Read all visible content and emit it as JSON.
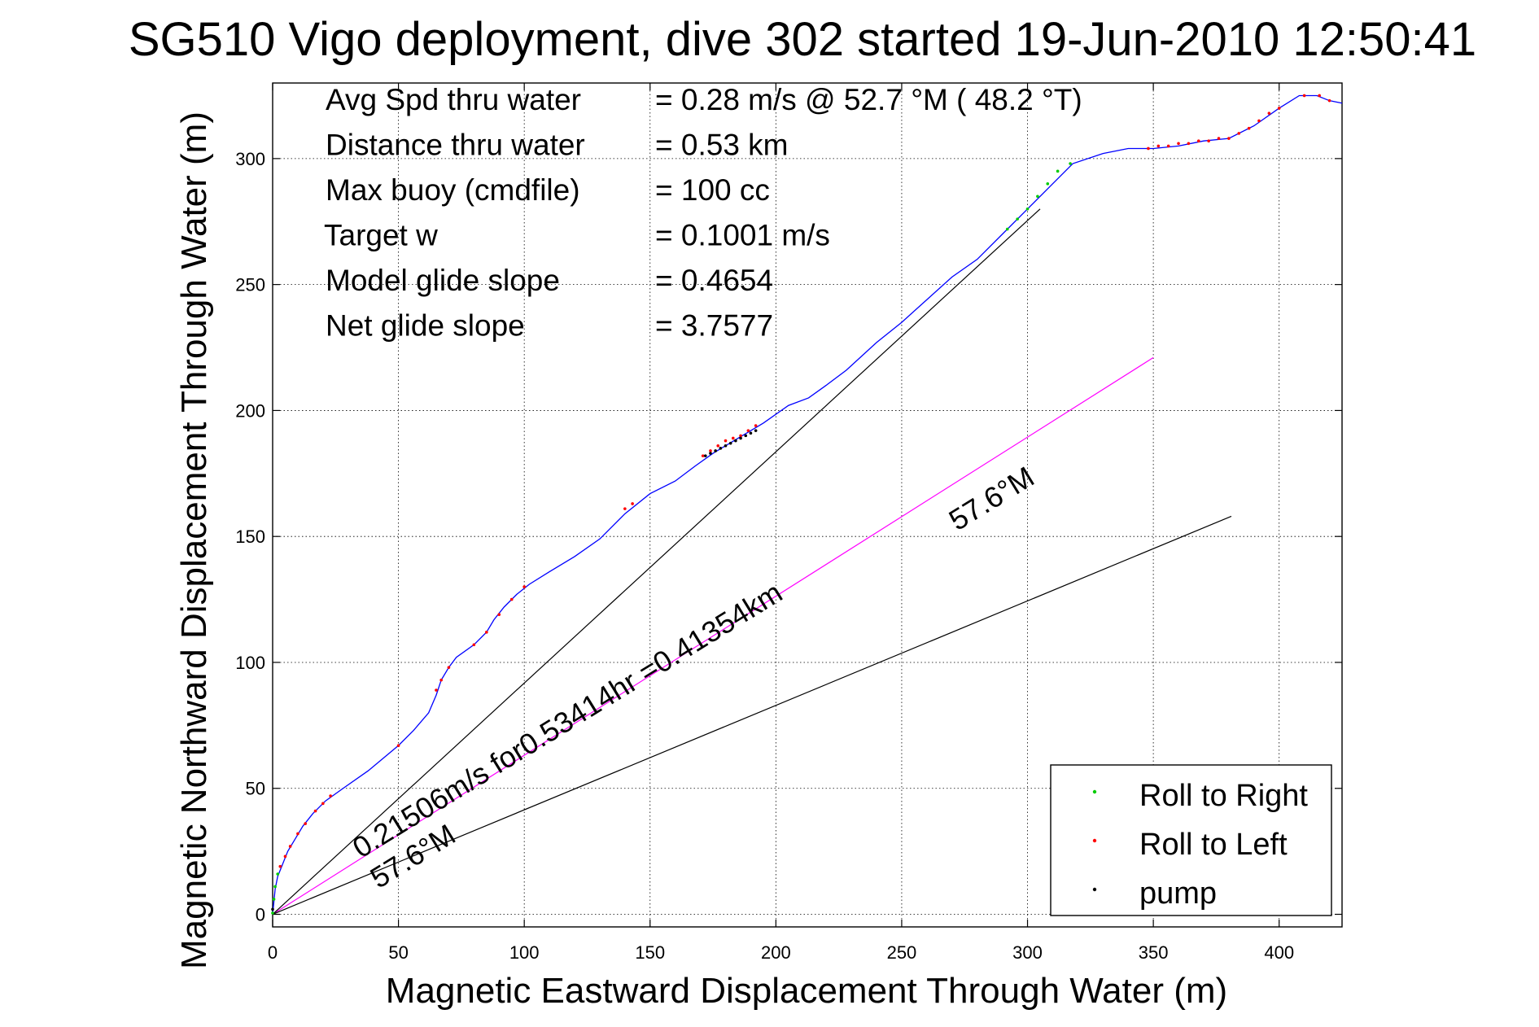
{
  "chart_data": {
    "type": "line",
    "title": "SG510 Vigo deployment, dive 302 started 19-Jun-2010 12:50:41",
    "xlabel": "Magnetic Eastward Displacement Through Water (m)",
    "ylabel": "Magnetic Northward Displacement Through Water (m)",
    "xlim": [
      0,
      425
    ],
    "ylim": [
      -5,
      330
    ],
    "x_ticks": [
      0,
      50,
      100,
      150,
      200,
      250,
      300,
      350,
      400
    ],
    "y_ticks": [
      0,
      50,
      100,
      150,
      200,
      250,
      300
    ],
    "grid": true,
    "legend_position": "bottom-right",
    "annotations": [
      {
        "label": "Avg Spd thru water",
        "value": "=  0.28 m/s @  52.7 °M ( 48.2 °T)"
      },
      {
        "label": "Distance thru water",
        "value": "=  0.53 km"
      },
      {
        "label": "Max buoy (cmdfile)",
        "value": "= 100 cc"
      },
      {
        "label": "Target w",
        "value": "= 0.1001 m/s"
      },
      {
        "label": "Model glide slope",
        "value": "= 0.4654"
      },
      {
        "label": "Net glide slope",
        "value": "= 3.7577"
      }
    ],
    "rotated_labels": [
      {
        "text": "0.21506m/s for0.53414hr =0.41354km",
        "x": 35,
        "y": 22,
        "angle": 31.6
      },
      {
        "text": "57.6°M",
        "x": 42,
        "y": 10,
        "angle": 31.6
      },
      {
        "text": "57.6°M",
        "x": 272,
        "y": 152,
        "angle": 31.6
      }
    ],
    "reference_lines": [
      {
        "name": "current",
        "color": "#ff00ff",
        "points": [
          [
            0,
            0
          ],
          [
            350,
            221
          ]
        ]
      },
      {
        "name": "upper",
        "color": "#000000",
        "points": [
          [
            0,
            0
          ],
          [
            305,
            280
          ]
        ]
      },
      {
        "name": "lower",
        "color": "#000000",
        "points": [
          [
            0,
            0
          ],
          [
            381,
            158
          ]
        ]
      }
    ],
    "series": [
      {
        "color": "#0000ff",
        "points": [
          [
            0,
            0
          ],
          [
            0.5,
            5
          ],
          [
            1,
            10
          ],
          [
            2,
            15
          ],
          [
            4,
            20
          ],
          [
            6,
            25
          ],
          [
            9,
            30
          ],
          [
            12,
            35
          ],
          [
            16,
            40
          ],
          [
            21,
            45
          ],
          [
            28,
            50
          ],
          [
            38,
            57
          ],
          [
            50,
            67
          ],
          [
            56,
            73
          ],
          [
            62,
            80
          ],
          [
            65,
            87
          ],
          [
            67,
            93
          ],
          [
            70,
            98
          ],
          [
            73,
            102
          ],
          [
            80,
            107
          ],
          [
            85,
            112
          ],
          [
            88,
            117
          ],
          [
            92,
            122
          ],
          [
            97,
            127
          ],
          [
            102,
            131
          ],
          [
            110,
            136
          ],
          [
            120,
            142
          ],
          [
            130,
            149
          ],
          [
            140,
            159
          ],
          [
            150,
            167
          ],
          [
            160,
            172
          ],
          [
            168,
            178
          ],
          [
            175,
            183
          ],
          [
            185,
            189
          ],
          [
            195,
            195
          ],
          [
            205,
            202
          ],
          [
            213,
            205
          ],
          [
            220,
            210
          ],
          [
            228,
            216
          ],
          [
            240,
            227
          ],
          [
            250,
            235
          ],
          [
            260,
            244
          ],
          [
            270,
            253
          ],
          [
            280,
            260
          ],
          [
            290,
            270
          ],
          [
            300,
            280
          ],
          [
            310,
            290
          ],
          [
            318,
            298
          ],
          [
            330,
            302
          ],
          [
            340,
            304
          ],
          [
            350,
            304
          ],
          [
            360,
            305
          ],
          [
            370,
            307
          ],
          [
            380,
            308
          ],
          [
            390,
            313
          ],
          [
            400,
            320
          ],
          [
            408,
            325
          ],
          [
            415,
            325
          ],
          [
            420,
            323
          ],
          [
            425,
            322
          ]
        ]
      }
    ],
    "legend": [
      {
        "label": "Roll to Right",
        "color": "#00cc00"
      },
      {
        "label": "Roll to Left",
        "color": "#ff0000"
      },
      {
        "label": "pump",
        "color": "#000000"
      }
    ],
    "markers": {
      "roll_right": [
        [
          0,
          0.5
        ],
        [
          0.5,
          6
        ],
        [
          1,
          11
        ],
        [
          2,
          16
        ],
        [
          292,
          272
        ],
        [
          296,
          276
        ],
        [
          300,
          280
        ],
        [
          304,
          285
        ],
        [
          308,
          290
        ],
        [
          312,
          295
        ],
        [
          317,
          298
        ]
      ],
      "roll_left": [
        [
          3,
          19
        ],
        [
          5,
          23
        ],
        [
          7,
          27
        ],
        [
          10,
          32
        ],
        [
          13,
          36
        ],
        [
          17,
          41
        ],
        [
          20,
          44
        ],
        [
          23,
          47
        ],
        [
          50,
          67
        ],
        [
          65,
          89
        ],
        [
          67,
          93
        ],
        [
          70,
          98
        ],
        [
          80,
          107
        ],
        [
          85,
          112
        ],
        [
          90,
          119
        ],
        [
          95,
          125
        ],
        [
          100,
          130
        ],
        [
          140,
          161
        ],
        [
          143,
          163
        ],
        [
          171,
          182
        ],
        [
          174,
          184
        ],
        [
          177,
          186
        ],
        [
          180,
          188
        ],
        [
          183,
          189
        ],
        [
          186,
          190
        ],
        [
          189,
          192
        ],
        [
          192,
          194
        ],
        [
          348,
          304
        ],
        [
          352,
          305
        ],
        [
          356,
          305
        ],
        [
          360,
          306
        ],
        [
          364,
          306
        ],
        [
          368,
          307
        ],
        [
          372,
          307
        ],
        [
          376,
          308
        ],
        [
          380,
          308
        ],
        [
          384,
          310
        ],
        [
          388,
          312
        ],
        [
          392,
          315
        ],
        [
          396,
          318
        ],
        [
          400,
          320
        ],
        [
          410,
          325
        ],
        [
          416,
          325
        ],
        [
          420,
          323
        ]
      ],
      "pump": [
        [
          0,
          2
        ],
        [
          172,
          182
        ],
        [
          174,
          183
        ],
        [
          176,
          184
        ],
        [
          178,
          185
        ],
        [
          180,
          186
        ],
        [
          182,
          187
        ],
        [
          184,
          188
        ],
        [
          186,
          189
        ],
        [
          188,
          190
        ],
        [
          190,
          191
        ],
        [
          192,
          192
        ]
      ]
    }
  }
}
